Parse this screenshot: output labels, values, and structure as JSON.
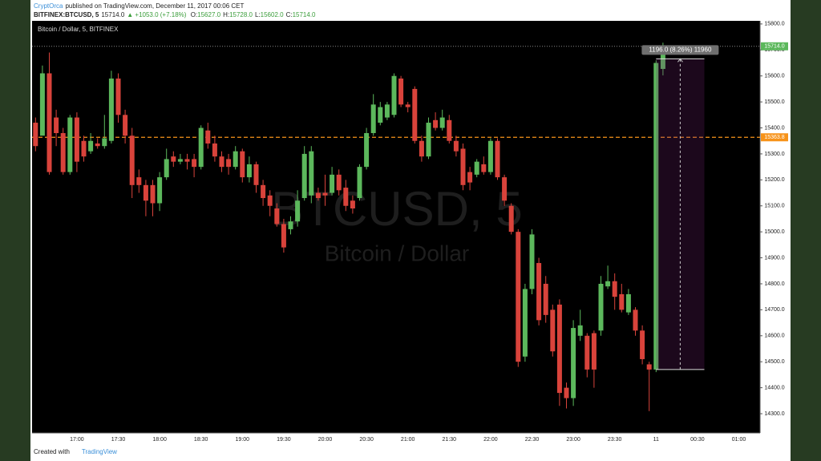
{
  "header": {
    "author": "CryptOrca",
    "published": "published on TradingView.com, December 11, 2017 00:06 CET",
    "symbol": "BITFINEX:BTCUSD, 5",
    "price": "15714.0",
    "change": "▲ +1053.0 (+7.18%)",
    "ohlc": [
      {
        "label": "O:",
        "value": "15627.0"
      },
      {
        "label": "H:",
        "value": "15728.0"
      },
      {
        "label": "L:",
        "value": "15602.0"
      },
      {
        "label": "C:",
        "value": "15714.0"
      }
    ]
  },
  "footer": {
    "text": "Created with",
    "brand": "TradingView"
  },
  "chart_data": {
    "type": "candlestick",
    "title": "Bitcoin / Dollar, 5, BITFINEX",
    "watermark": "BTCUSD, 5",
    "watermark_subtitle": "Bitcoin / Dollar",
    "up_color": "#5cb85c",
    "down_color": "#d9433b",
    "categories": [
      null,
      null,
      null,
      null,
      null,
      null,
      "17:00",
      null,
      null,
      null,
      null,
      null,
      "17:30",
      null,
      null,
      null,
      null,
      null,
      "18:00",
      null,
      null,
      null,
      null,
      null,
      "18:30",
      null,
      null,
      null,
      null,
      null,
      "19:00",
      null,
      null,
      null,
      null,
      null,
      "19:30",
      null,
      null,
      null,
      null,
      null,
      "20:00",
      null,
      null,
      null,
      null,
      null,
      "20:30",
      null,
      null,
      null,
      null,
      null,
      "21:00",
      null,
      null,
      null,
      null,
      null,
      "21:30",
      null,
      null,
      null,
      null,
      null,
      "22:00",
      null,
      null,
      null,
      null,
      null,
      "22:30",
      null,
      null,
      null,
      null,
      null,
      "23:00",
      null,
      null,
      null,
      null,
      null,
      "23:30",
      null,
      null,
      null,
      null,
      null,
      "11",
      null,
      null,
      null,
      null,
      null,
      "00:30",
      null,
      null,
      null,
      null,
      null,
      "01:00",
      null,
      null
    ],
    "open": [
      15420,
      15370,
      15610,
      15440,
      15380,
      15230,
      15440,
      15350,
      15310,
      15340,
      15330,
      15350,
      15590,
      15450,
      15370,
      15210,
      15180,
      15180,
      15110,
      15210,
      15290,
      15270,
      15280,
      15280,
      15250,
      15390,
      15340,
      15290,
      15280,
      15250,
      15310,
      15210,
      15260,
      15180,
      15140,
      15090,
      15030,
      15010,
      15040,
      15130,
      15140,
      15150,
      15150,
      15150,
      15220,
      15170,
      15120,
      15130,
      15250,
      15380,
      15420,
      15440,
      15450,
      15590,
      15490,
      15550,
      15350,
      15290,
      15430,
      15400,
      15430,
      15350,
      15320,
      15230,
      15220,
      15260,
      15230,
      15350,
      15210,
      15100,
      15000,
      14520,
      14780,
      14880,
      14800,
      14700,
      14720,
      14400,
      14360,
      14600,
      14600,
      14610,
      14620,
      14790,
      14810,
      14760,
      14690,
      14700,
      14620,
      14490,
      14470,
      15627,
      null,
      null,
      null,
      null,
      null,
      null,
      null,
      null,
      null,
      null,
      null,
      null,
      null
    ],
    "high": [
      15440,
      15640,
      15690,
      15470,
      15400,
      15450,
      15460,
      15370,
      15380,
      15360,
      15450,
      15620,
      15610,
      15470,
      15400,
      15240,
      15200,
      15200,
      15230,
      15320,
      15310,
      15300,
      15300,
      15300,
      15410,
      15420,
      15370,
      15310,
      15300,
      15330,
      15320,
      15290,
      15270,
      15200,
      15160,
      15110,
      15050,
      15060,
      15160,
      15330,
      15330,
      15170,
      15220,
      15250,
      15240,
      15200,
      15140,
      15260,
      15400,
      15530,
      15500,
      15500,
      15610,
      15600,
      15500,
      15560,
      15370,
      15440,
      15460,
      15470,
      15450,
      15370,
      15340,
      15250,
      15280,
      15290,
      15360,
      15360,
      15220,
      15110,
      15010,
      14800,
      15010,
      14900,
      14830,
      14720,
      14740,
      14420,
      14660,
      14700,
      14610,
      14620,
      14830,
      14870,
      14840,
      14800,
      14780,
      14710,
      14640,
      14500,
      15660,
      15728,
      null,
      null,
      null,
      null,
      null,
      null,
      null,
      null,
      null,
      null,
      null,
      null,
      null
    ],
    "low": [
      15310,
      15380,
      15220,
      15330,
      15220,
      15220,
      15230,
      15270,
      15300,
      15320,
      15320,
      15340,
      15420,
      15340,
      15130,
      15150,
      15060,
      15060,
      15080,
      15200,
      15250,
      15260,
      15240,
      15210,
      15240,
      15320,
      15270,
      15230,
      15220,
      15240,
      15190,
      15190,
      15150,
      15100,
      15060,
      15020,
      14920,
      14990,
      15020,
      15120,
      15110,
      15120,
      15100,
      15140,
      15140,
      15080,
      15070,
      15120,
      15240,
      15370,
      15410,
      15430,
      15440,
      15480,
      15460,
      15340,
      15270,
      15280,
      15390,
      15390,
      15340,
      15290,
      15160,
      15160,
      15210,
      15220,
      15220,
      15200,
      15100,
      14990,
      14480,
      14500,
      14760,
      14640,
      14650,
      14520,
      14330,
      14320,
      14330,
      14580,
      14440,
      14400,
      14600,
      14780,
      14700,
      14690,
      14680,
      14600,
      14490,
      14310,
      14460,
      15602,
      null,
      null,
      null,
      null,
      null,
      null,
      null,
      null,
      null,
      null,
      null,
      null,
      null
    ],
    "close": [
      15330,
      15610,
      15230,
      15380,
      15230,
      15440,
      15270,
      15290,
      15350,
      15330,
      15360,
      15590,
      15450,
      15370,
      15180,
      15180,
      15120,
      15110,
      15210,
      15280,
      15270,
      15280,
      15270,
      15250,
      15400,
      15340,
      15290,
      15250,
      15250,
      15310,
      15210,
      15260,
      15180,
      15130,
      15100,
      15030,
      14940,
      15040,
      15120,
      15300,
      15310,
      15130,
      15140,
      15220,
      15160,
      15100,
      15090,
      15250,
      15380,
      15490,
      15480,
      15490,
      15600,
      15490,
      15480,
      15350,
      15290,
      15420,
      15400,
      15440,
      15350,
      15310,
      15180,
      15190,
      15270,
      15230,
      15350,
      15210,
      15120,
      15000,
      14500,
      14780,
      14990,
      14660,
      14680,
      14540,
      14380,
      14360,
      14630,
      14640,
      14470,
      14470,
      14800,
      14810,
      14750,
      14700,
      14760,
      14620,
      14510,
      14470,
      15650,
      15714,
      null,
      null,
      null,
      null,
      null,
      null,
      null,
      null,
      null,
      null,
      null,
      null,
      null
    ],
    "ylim": [
      14226,
      15812
    ],
    "yticks": [
      {
        "value": 14300,
        "label": "14300.0"
      },
      {
        "value": 14400,
        "label": "14400.0"
      },
      {
        "value": 14500,
        "label": "14500.0"
      },
      {
        "value": 14600,
        "label": "14600.0"
      },
      {
        "value": 14700,
        "label": "14700.0"
      },
      {
        "value": 14800,
        "label": "14800.0"
      },
      {
        "value": 14900,
        "label": "14900.0"
      },
      {
        "value": 15000,
        "label": "15000.0"
      },
      {
        "value": 15100,
        "label": "15100.0"
      },
      {
        "value": 15200,
        "label": "15200.0"
      },
      {
        "value": 15300,
        "label": "15300.0"
      },
      {
        "value": 15400,
        "label": "15400.0"
      },
      {
        "value": 15500,
        "label": "15500.0"
      },
      {
        "value": 15600,
        "label": "15600.0"
      },
      {
        "value": 15700,
        "label": "15700.0"
      },
      {
        "value": 15800,
        "label": "15800.0"
      }
    ],
    "hline": {
      "value": 15363.8,
      "label": "15363.8",
      "color": "#f7931a"
    },
    "last_price": {
      "value": 15714,
      "label": "15714.0",
      "color": "#5cb85c"
    },
    "measure": {
      "from": 14470,
      "to": 15666,
      "label": "1196.0 (8.26%) 11960"
    }
  }
}
